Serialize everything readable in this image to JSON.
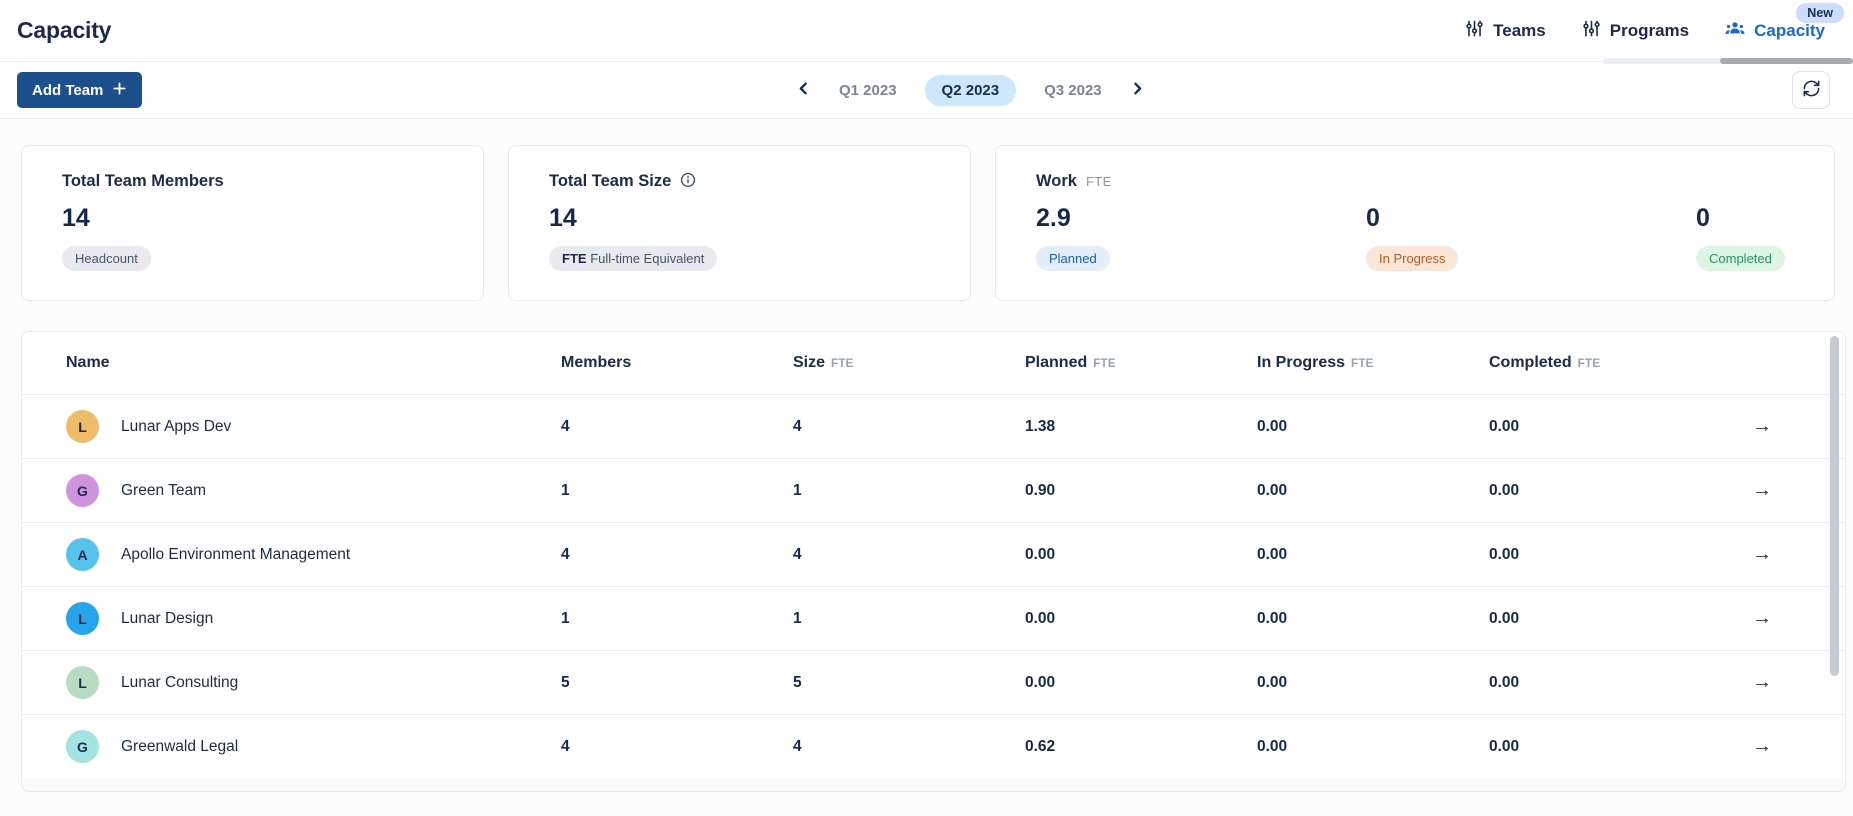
{
  "page": {
    "title": "Capacity"
  },
  "nav": {
    "items": [
      {
        "label": "Teams",
        "icon": "sliders-icon",
        "active": false
      },
      {
        "label": "Programs",
        "icon": "sliders-icon",
        "active": false
      },
      {
        "label": "Capacity",
        "icon": "people-icon",
        "active": true
      }
    ],
    "new_badge": "New"
  },
  "toolbar": {
    "add_team_label": "Add Team",
    "quarters": [
      {
        "label": "Q1 2023",
        "selected": false
      },
      {
        "label": "Q2 2023",
        "selected": true
      },
      {
        "label": "Q3 2023",
        "selected": false
      }
    ]
  },
  "cards": {
    "members": {
      "title": "Total Team Members",
      "value": "14",
      "badge": "Headcount"
    },
    "size": {
      "title": "Total Team Size",
      "value": "14",
      "badge_prefix": "FTE",
      "badge_text": "Full-time Equivalent"
    },
    "work": {
      "title": "Work",
      "unit": "FTE",
      "metrics": [
        {
          "value": "2.9",
          "badge": "Planned",
          "color": "blue",
          "badge_bg": "#E4EEFB",
          "badge_fg": "#1C5FB0"
        },
        {
          "value": "0",
          "badge": "In Progress",
          "color": "orange",
          "badge_bg": "#FBE7DA",
          "badge_fg": "#BE5B1D"
        },
        {
          "value": "0",
          "badge": "Completed",
          "color": "green",
          "badge_bg": "#DEF5E4",
          "badge_fg": "#27935F"
        }
      ]
    }
  },
  "table": {
    "columns": [
      {
        "label": "Name"
      },
      {
        "label": "Members"
      },
      {
        "label": "Size",
        "unit": "FTE"
      },
      {
        "label": "Planned",
        "unit": "FTE"
      },
      {
        "label": "In Progress",
        "unit": "FTE"
      },
      {
        "label": "Completed",
        "unit": "FTE"
      }
    ],
    "rows": [
      {
        "initial": "L",
        "avatar_color": "#EFBD69",
        "name": "Lunar Apps Dev",
        "members": "4",
        "size": "4",
        "planned": "1.38",
        "in_progress": "0.00",
        "completed": "0.00"
      },
      {
        "initial": "G",
        "avatar_color": "#CF92DE",
        "name": "Green Team",
        "members": "1",
        "size": "1",
        "planned": "0.90",
        "in_progress": "0.00",
        "completed": "0.00"
      },
      {
        "initial": "A",
        "avatar_color": "#55C3EC",
        "name": "Apollo Environment Management",
        "members": "4",
        "size": "4",
        "planned": "0.00",
        "in_progress": "0.00",
        "completed": "0.00"
      },
      {
        "initial": "L",
        "avatar_color": "#27A4EA",
        "name": "Lunar Design",
        "members": "1",
        "size": "1",
        "planned": "0.00",
        "in_progress": "0.00",
        "completed": "0.00"
      },
      {
        "initial": "L",
        "avatar_color": "#B7DCC2",
        "name": "Lunar Consulting",
        "members": "5",
        "size": "5",
        "planned": "0.00",
        "in_progress": "0.00",
        "completed": "0.00"
      },
      {
        "initial": "G",
        "avatar_color": "#A3E4E3",
        "name": "Greenwald Legal",
        "members": "4",
        "size": "4",
        "planned": "0.62",
        "in_progress": "0.00",
        "completed": "0.00"
      }
    ],
    "row_arrow_icon": "arrow-right-icon"
  },
  "colors": {
    "accent_blue": "#1868DB",
    "primary_button": "#1C4F8B",
    "selected_quarter_bg": "#CDE7FC",
    "new_badge_bg": "#CBDDFB",
    "text_dark": "#1A2B4C",
    "text_gray": "#7A8699"
  }
}
